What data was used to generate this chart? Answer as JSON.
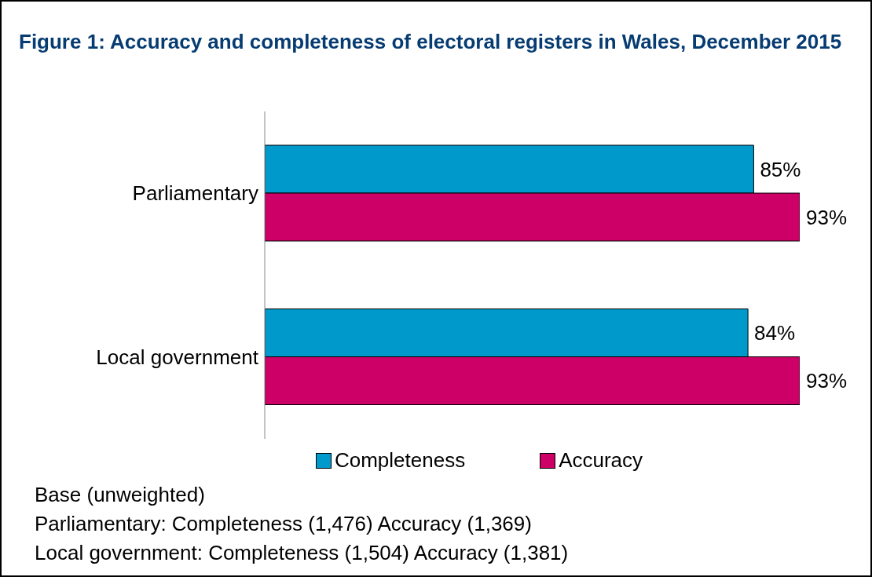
{
  "chart_data": {
    "type": "bar",
    "orientation": "horizontal",
    "title": "Figure 1: Accuracy and completeness of electoral registers in Wales, December 2015",
    "categories": [
      "Parliamentary",
      "Local government"
    ],
    "series": [
      {
        "name": "Completeness",
        "color": "#0099cc",
        "values": [
          85,
          84
        ],
        "value_labels": [
          "85%",
          "84%"
        ]
      },
      {
        "name": "Accuracy",
        "color": "#cc0066",
        "values": [
          93,
          93
        ],
        "value_labels": [
          "93%",
          "93%"
        ]
      }
    ],
    "legend": "bottom",
    "annotations": [
      "Base (unweighted)",
      "Parliamentary: Completeness (1,476) Accuracy (1,369)",
      "Local government: Completeness (1,504) Accuracy (1,381)"
    ]
  }
}
